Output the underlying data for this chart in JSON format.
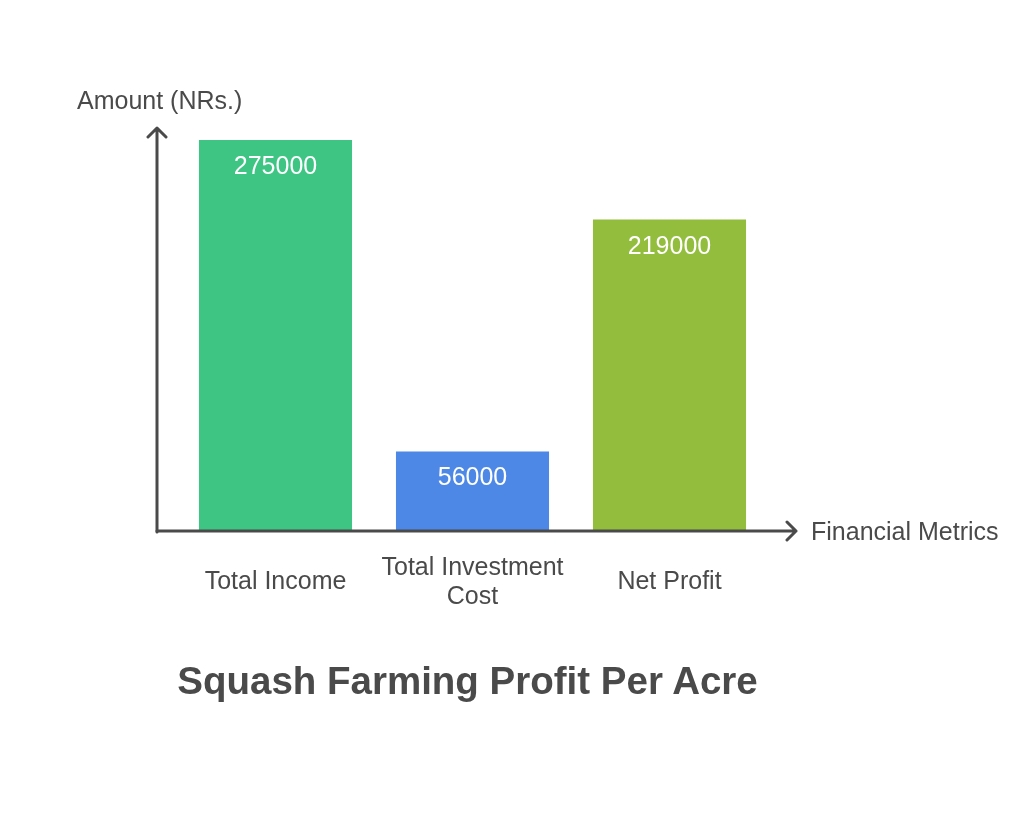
{
  "chart_data": {
    "type": "bar",
    "title": "Squash Farming Profit Per Acre",
    "xlabel": "Financial Metrics",
    "ylabel": "Amount (NRs.)",
    "categories": [
      "Total Income",
      "Total Investment Cost",
      "Net Profit"
    ],
    "values": [
      275000,
      56000,
      219000
    ],
    "colors": [
      "#3ec583",
      "#4d88e6",
      "#93bd3c"
    ],
    "data_labels": true,
    "tick_labels": "x",
    "grid": false,
    "legend": false
  }
}
